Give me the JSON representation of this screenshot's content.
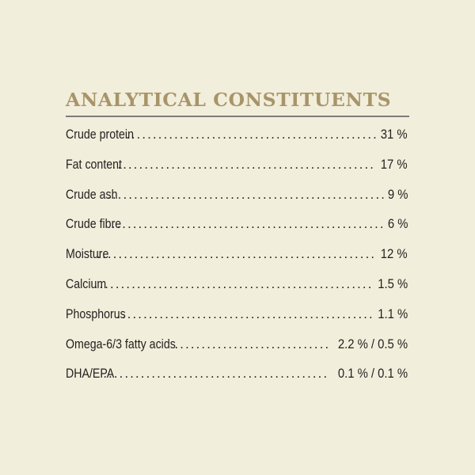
{
  "title": "ANALYTICAL CONSTITUENTS",
  "colors": {
    "background": "#f1eedb",
    "title": "#a89469",
    "rule": "#7d7d7b",
    "text": "#231f20"
  },
  "rows": [
    {
      "label": "Crude protein",
      "value": "31 %"
    },
    {
      "label": "Fat content",
      "value": "17 %"
    },
    {
      "label": "Crude ash",
      "value": "9 %"
    },
    {
      "label": "Crude fibre",
      "value": "6 %"
    },
    {
      "label": "Moisture",
      "value": "12 %"
    },
    {
      "label": "Calcium",
      "value": "1.5 %"
    },
    {
      "label": "Phosphorus",
      "value": "1.1 %"
    },
    {
      "label": "Omega-6/3 fatty acids",
      "value": "2.2 % / 0.5 %"
    },
    {
      "label": "DHA/EPA",
      "value": "0.1 % / 0.1 %"
    }
  ]
}
